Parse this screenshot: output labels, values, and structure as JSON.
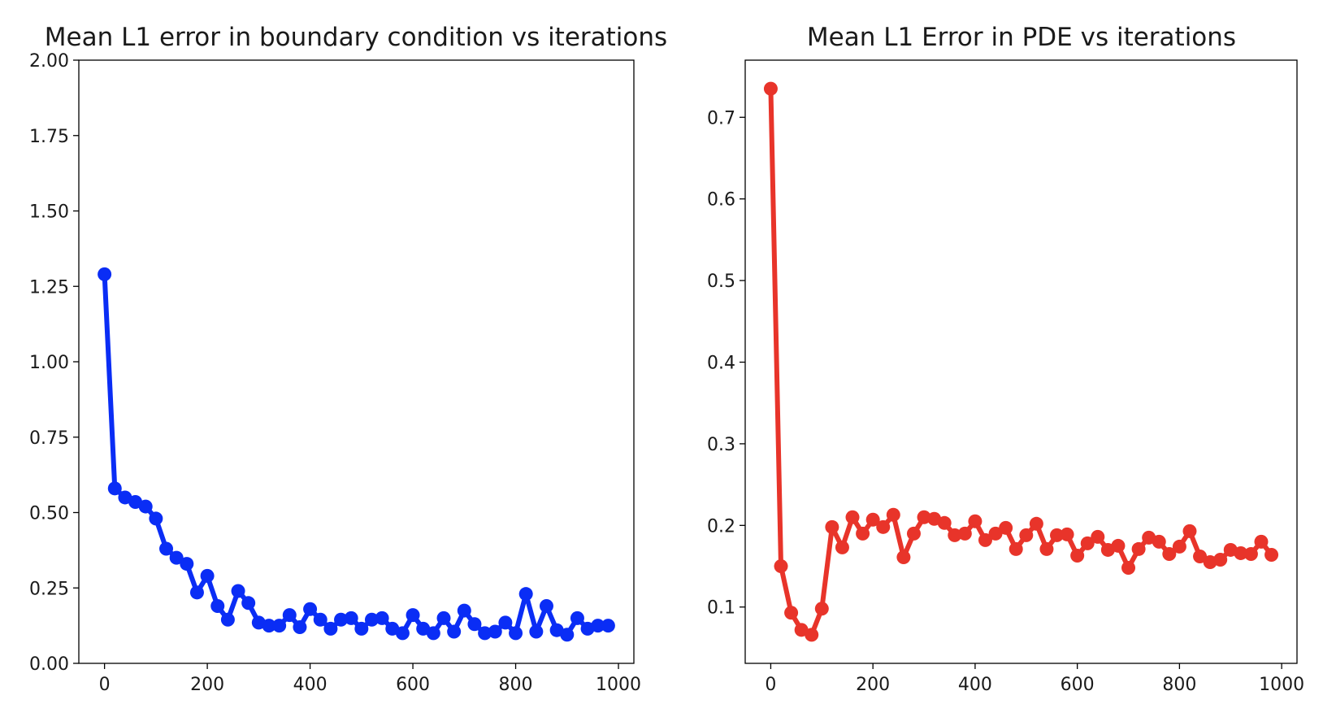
{
  "chart_data": [
    {
      "type": "line",
      "title": "Mean L1 error in boundary condition vs iterations",
      "xlabel": "",
      "ylabel": "",
      "xlim": [
        -50,
        1030
      ],
      "ylim": [
        0,
        2.0
      ],
      "xticks": [
        0,
        200,
        400,
        600,
        800,
        1000
      ],
      "xtick_labels": [
        "0",
        "200",
        "400",
        "600",
        "800",
        "1000"
      ],
      "yticks": [
        0,
        0.25,
        0.5,
        0.75,
        1.0,
        1.25,
        1.5,
        1.75,
        2.0
      ],
      "ytick_labels": [
        "0.00",
        "0.25",
        "0.50",
        "0.75",
        "1.00",
        "1.25",
        "1.50",
        "1.75",
        "2.00"
      ],
      "grid": false,
      "color": "#0a2df5",
      "series": [
        {
          "x": [
            0,
            20,
            40,
            60,
            80,
            100,
            120,
            140,
            160,
            180,
            200,
            220,
            240,
            260,
            280,
            300,
            320,
            340,
            360,
            380,
            400,
            420,
            440,
            460,
            480,
            500,
            520,
            540,
            560,
            580,
            600,
            620,
            640,
            660,
            680,
            700,
            720,
            740,
            760,
            780,
            800,
            820,
            840,
            860,
            880,
            900,
            920,
            940,
            960,
            980
          ],
          "values": [
            1.29,
            0.58,
            0.55,
            0.535,
            0.52,
            0.48,
            0.38,
            0.35,
            0.33,
            0.235,
            0.29,
            0.19,
            0.145,
            0.24,
            0.2,
            0.135,
            0.125,
            0.125,
            0.16,
            0.12,
            0.18,
            0.145,
            0.115,
            0.145,
            0.15,
            0.115,
            0.145,
            0.15,
            0.115,
            0.1,
            0.16,
            0.115,
            0.1,
            0.15,
            0.105,
            0.175,
            0.13,
            0.1,
            0.105,
            0.135,
            0.1,
            0.23,
            0.105,
            0.19,
            0.11,
            0.095,
            0.15,
            0.115,
            0.125,
            0.125
          ]
        }
      ]
    },
    {
      "type": "line",
      "title": "Mean L1 Error in PDE vs iterations",
      "xlabel": "",
      "ylabel": "",
      "xlim": [
        -50,
        1030
      ],
      "ylim": [
        0.031,
        0.77
      ],
      "xticks": [
        0,
        200,
        400,
        600,
        800,
        1000
      ],
      "xtick_labels": [
        "0",
        "200",
        "400",
        "600",
        "800",
        "1000"
      ],
      "yticks": [
        0.1,
        0.2,
        0.3,
        0.4,
        0.5,
        0.6,
        0.7
      ],
      "ytick_labels": [
        "0.1",
        "0.2",
        "0.3",
        "0.4",
        "0.5",
        "0.6",
        "0.7"
      ],
      "grid": false,
      "color": "#e8342a",
      "series": [
        {
          "x": [
            0,
            20,
            40,
            60,
            80,
            100,
            120,
            140,
            160,
            180,
            200,
            220,
            240,
            260,
            280,
            300,
            320,
            340,
            360,
            380,
            400,
            420,
            440,
            460,
            480,
            500,
            520,
            540,
            560,
            580,
            600,
            620,
            640,
            660,
            680,
            700,
            720,
            740,
            760,
            780,
            800,
            820,
            840,
            860,
            880,
            900,
            920,
            940,
            960,
            980
          ],
          "values": [
            0.735,
            0.15,
            0.093,
            0.072,
            0.066,
            0.098,
            0.198,
            0.173,
            0.21,
            0.19,
            0.207,
            0.198,
            0.213,
            0.161,
            0.19,
            0.21,
            0.208,
            0.203,
            0.188,
            0.19,
            0.205,
            0.182,
            0.19,
            0.197,
            0.171,
            0.188,
            0.202,
            0.171,
            0.188,
            0.189,
            0.163,
            0.178,
            0.186,
            0.17,
            0.175,
            0.148,
            0.171,
            0.185,
            0.18,
            0.165,
            0.174,
            0.193,
            0.162,
            0.155,
            0.158,
            0.17,
            0.166,
            0.165,
            0.18,
            0.164
          ]
        }
      ]
    }
  ]
}
